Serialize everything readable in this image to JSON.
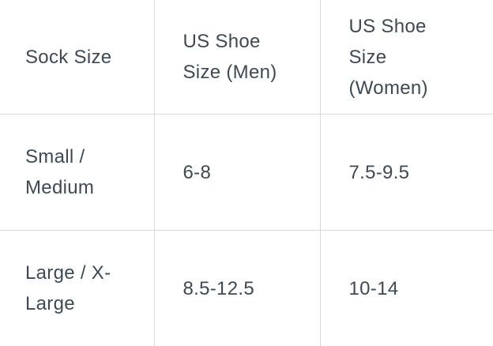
{
  "table": {
    "headers": [
      "Sock Size",
      "US Shoe Size (Men)",
      "US Shoe Size (Women)"
    ],
    "rows": [
      [
        "Small / Medium",
        "6-8",
        "7.5-9.5"
      ],
      [
        "Large / X-Large",
        "8.5-12.5",
        "10-14"
      ]
    ]
  }
}
